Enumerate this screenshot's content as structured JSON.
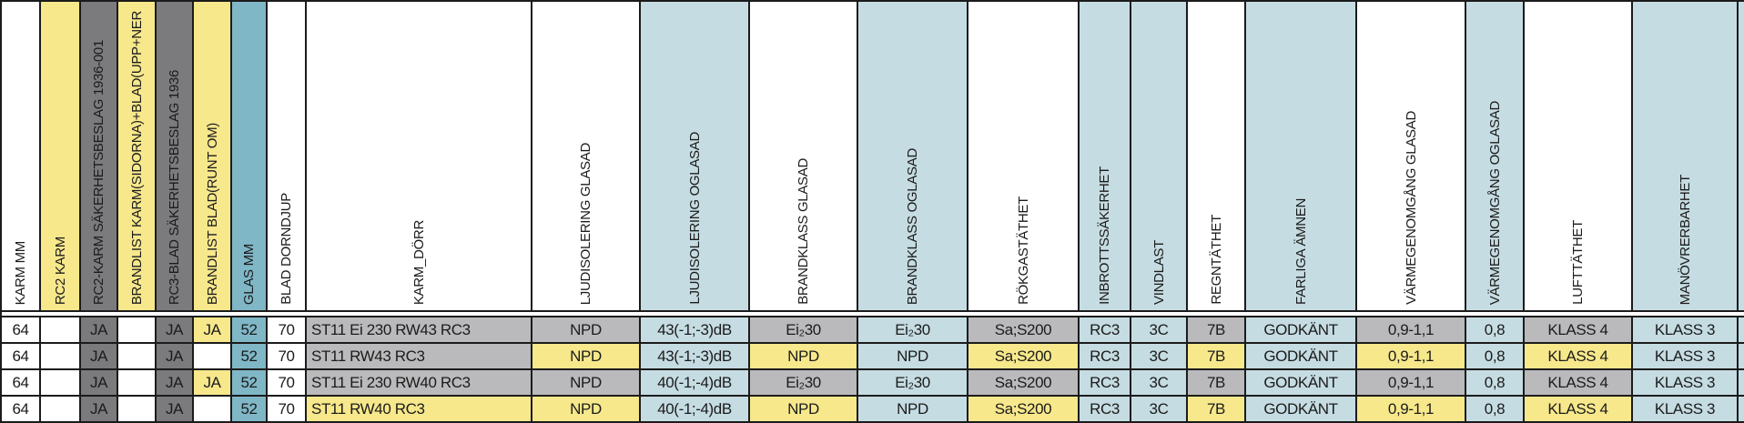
{
  "colors": {
    "white": "#FFFFFF",
    "yellow": "#F7E88C",
    "darkgray": "#7B7B7D",
    "lightgray": "#BABABC",
    "teal": "#7FB7C7",
    "lightblue": "#C5DCE2",
    "grid_line": "#1B1B1B"
  },
  "table": {
    "columns": [
      {
        "id": "karm-mm",
        "label": "KARM MM",
        "header_bg": "white"
      },
      {
        "id": "rc2-karm",
        "label": "RC2 KARM",
        "header_bg": "yellow"
      },
      {
        "id": "rc2-karm-sakerhetsbeslag",
        "label": "RC2-KARM SÄKERHETSBESLAG 1936-001",
        "header_bg": "darkgray"
      },
      {
        "id": "brandlist-karm",
        "label": "BRANDLIST KARM(SIDORNA)+BLAD(UPP+NER",
        "header_bg": "yellow"
      },
      {
        "id": "rc3-blad-sakerhetsbeslag",
        "label": "RC3-BLAD SÄKERHETSBESLAG 1936",
        "header_bg": "darkgray"
      },
      {
        "id": "brandlist-blad",
        "label": "BRANDLIST BLAD(RUNT OM)",
        "header_bg": "yellow"
      },
      {
        "id": "glas-mm",
        "label": "GLAS MM",
        "header_bg": "teal"
      },
      {
        "id": "blad-dorndjup",
        "label": "BLAD DORNDJUP",
        "header_bg": "white"
      },
      {
        "id": "karm-dorr",
        "label": "KARM_DÖRR",
        "header_bg": "white"
      },
      {
        "id": "ljudisolering-glasad",
        "label": "LJUDISOLERING GLASAD",
        "header_bg": "white"
      },
      {
        "id": "ljudisolering-oglasad",
        "label": "LJUDISOLERING OGLASAD",
        "header_bg": "lightblue"
      },
      {
        "id": "brandklass-glasad",
        "label": "BRANDKLASS GLASAD",
        "header_bg": "white"
      },
      {
        "id": "brandklass-oglasad",
        "label": "BRANDKLASS OGLASAD",
        "header_bg": "lightblue"
      },
      {
        "id": "rokgastathet",
        "label": "RÖKGASTÄTHET",
        "header_bg": "white"
      },
      {
        "id": "inbrottssakerhet",
        "label": "INBROTTSSÄKERHET",
        "header_bg": "lightblue"
      },
      {
        "id": "vindlast",
        "label": "VINDLAST",
        "header_bg": "lightblue"
      },
      {
        "id": "regntathet",
        "label": "REGNTÄTHET",
        "header_bg": "white"
      },
      {
        "id": "farliga-amnen",
        "label": "FARLIGA ÄMNEN",
        "header_bg": "lightblue"
      },
      {
        "id": "varmegenomgang-glasad",
        "label": "VÄRMEGENOMGÅNG GLASAD",
        "header_bg": "white"
      },
      {
        "id": "varmegenomgang-oglasad",
        "label": "VÄRMEGENOMGÅNG OGLASAD",
        "header_bg": "lightblue"
      },
      {
        "id": "lufttathet",
        "label": "LUFTTÄTHET",
        "header_bg": "white"
      },
      {
        "id": "manovrerbarhet",
        "label": "MANÖVRERBARHET",
        "header_bg": "lightblue"
      }
    ],
    "rows": [
      {
        "cells": [
          {
            "t": "64",
            "bg": "white"
          },
          {
            "t": "",
            "bg": "white"
          },
          {
            "t": "JA",
            "bg": "darkgray"
          },
          {
            "t": "",
            "bg": "white"
          },
          {
            "t": "JA",
            "bg": "darkgray"
          },
          {
            "t": "JA",
            "bg": "yellow"
          },
          {
            "t": "52",
            "bg": "teal"
          },
          {
            "t": "70",
            "bg": "white"
          },
          {
            "t": "ST11 Ei 230 RW43 RC3",
            "bg": "lightgray"
          },
          {
            "t": "NPD",
            "bg": "lightgray"
          },
          {
            "t": "43(-1;-3)dB",
            "bg": "lightblue"
          },
          {
            "t": "Ei₂30",
            "bg": "lightgray"
          },
          {
            "t": "Ei₂30",
            "bg": "lightblue"
          },
          {
            "t": "Sa;S200",
            "bg": "lightgray"
          },
          {
            "t": "RC3",
            "bg": "lightblue"
          },
          {
            "t": "3C",
            "bg": "lightblue"
          },
          {
            "t": "7B",
            "bg": "lightgray"
          },
          {
            "t": "GODKÄNT",
            "bg": "lightblue"
          },
          {
            "t": "0,9-1,1",
            "bg": "lightgray"
          },
          {
            "t": "0,8",
            "bg": "lightblue"
          },
          {
            "t": "KLASS 4",
            "bg": "lightgray"
          },
          {
            "t": "KLASS 3",
            "bg": "lightblue"
          }
        ]
      },
      {
        "cells": [
          {
            "t": "64",
            "bg": "white"
          },
          {
            "t": "",
            "bg": "white"
          },
          {
            "t": "JA",
            "bg": "darkgray"
          },
          {
            "t": "",
            "bg": "white"
          },
          {
            "t": "JA",
            "bg": "darkgray"
          },
          {
            "t": "",
            "bg": "white"
          },
          {
            "t": "52",
            "bg": "teal"
          },
          {
            "t": "70",
            "bg": "white"
          },
          {
            "t": "ST11 RW43 RC3",
            "bg": "lightgray"
          },
          {
            "t": "NPD",
            "bg": "yellow"
          },
          {
            "t": "43(-1;-3)dB",
            "bg": "lightblue"
          },
          {
            "t": "NPD",
            "bg": "yellow"
          },
          {
            "t": "NPD",
            "bg": "lightblue"
          },
          {
            "t": "Sa;S200",
            "bg": "yellow"
          },
          {
            "t": "RC3",
            "bg": "lightblue"
          },
          {
            "t": "3C",
            "bg": "lightblue"
          },
          {
            "t": "7B",
            "bg": "yellow"
          },
          {
            "t": "GODKÄNT",
            "bg": "lightblue"
          },
          {
            "t": "0,9-1,1",
            "bg": "yellow"
          },
          {
            "t": "0,8",
            "bg": "lightblue"
          },
          {
            "t": "KLASS 4",
            "bg": "yellow"
          },
          {
            "t": "KLASS 3",
            "bg": "lightblue"
          }
        ]
      },
      {
        "cells": [
          {
            "t": "64",
            "bg": "white"
          },
          {
            "t": "",
            "bg": "white"
          },
          {
            "t": "JA",
            "bg": "darkgray"
          },
          {
            "t": "",
            "bg": "white"
          },
          {
            "t": "JA",
            "bg": "darkgray"
          },
          {
            "t": "JA",
            "bg": "yellow"
          },
          {
            "t": "52",
            "bg": "teal"
          },
          {
            "t": "70",
            "bg": "white"
          },
          {
            "t": "ST11 Ei 230 RW40 RC3",
            "bg": "lightgray"
          },
          {
            "t": "NPD",
            "bg": "lightgray"
          },
          {
            "t": "40(-1;-4)dB",
            "bg": "lightblue"
          },
          {
            "t": "Ei₂30",
            "bg": "lightgray"
          },
          {
            "t": "Ei₂30",
            "bg": "lightblue"
          },
          {
            "t": "Sa;S200",
            "bg": "lightgray"
          },
          {
            "t": "RC3",
            "bg": "lightblue"
          },
          {
            "t": "3C",
            "bg": "lightblue"
          },
          {
            "t": "7B",
            "bg": "lightgray"
          },
          {
            "t": "GODKÄNT",
            "bg": "lightblue"
          },
          {
            "t": "0,9-1,1",
            "bg": "lightgray"
          },
          {
            "t": "0,8",
            "bg": "lightblue"
          },
          {
            "t": "KLASS 4",
            "bg": "lightgray"
          },
          {
            "t": "KLASS 3",
            "bg": "lightblue"
          }
        ]
      },
      {
        "cells": [
          {
            "t": "64",
            "bg": "white"
          },
          {
            "t": "",
            "bg": "white"
          },
          {
            "t": "JA",
            "bg": "darkgray"
          },
          {
            "t": "",
            "bg": "white"
          },
          {
            "t": "JA",
            "bg": "darkgray"
          },
          {
            "t": "",
            "bg": "white"
          },
          {
            "t": "52",
            "bg": "teal"
          },
          {
            "t": "70",
            "bg": "white"
          },
          {
            "t": "ST11 RW40 RC3",
            "bg": "yellow"
          },
          {
            "t": "NPD",
            "bg": "yellow"
          },
          {
            "t": "40(-1;-4)dB",
            "bg": "lightblue"
          },
          {
            "t": "NPD",
            "bg": "yellow"
          },
          {
            "t": "NPD",
            "bg": "lightblue"
          },
          {
            "t": "Sa;S200",
            "bg": "yellow"
          },
          {
            "t": "RC3",
            "bg": "lightblue"
          },
          {
            "t": "3C",
            "bg": "lightblue"
          },
          {
            "t": "7B",
            "bg": "yellow"
          },
          {
            "t": "GODKÄNT",
            "bg": "lightblue"
          },
          {
            "t": "0,9-1,1",
            "bg": "yellow"
          },
          {
            "t": "0,8",
            "bg": "lightblue"
          },
          {
            "t": "KLASS 4",
            "bg": "yellow"
          },
          {
            "t": "KLASS 3",
            "bg": "lightblue"
          }
        ]
      }
    ]
  }
}
